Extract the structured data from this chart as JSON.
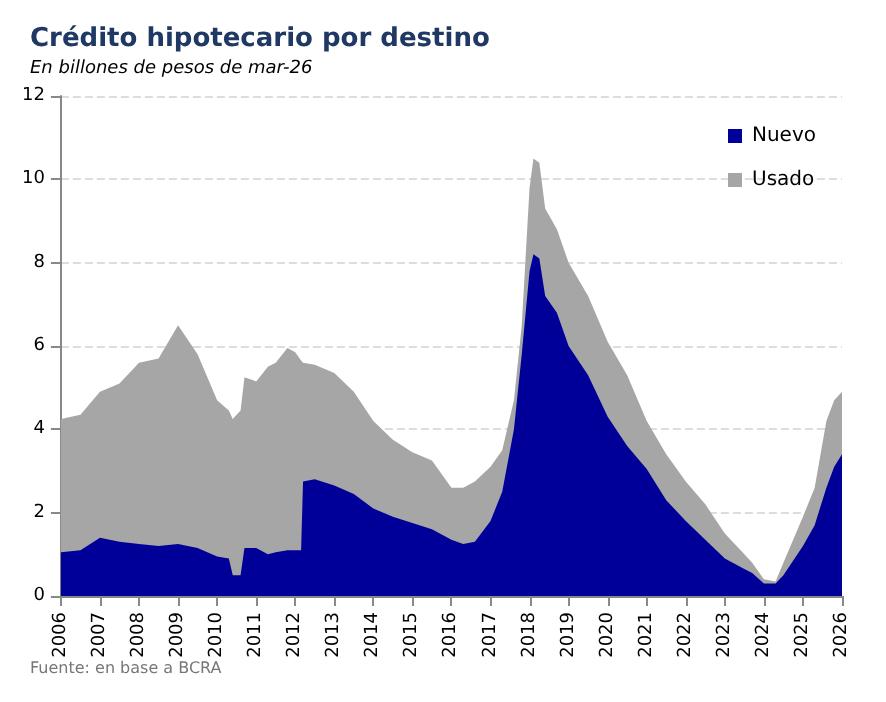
{
  "chart_data": {
    "type": "area",
    "title": "Crédito hipotecario por destino",
    "subtitle": "En billones de pesos de mar-26",
    "annotations": [
      "Fuente: en base a BCRA"
    ],
    "stacked": true,
    "x": [
      2006,
      2006.5,
      2007,
      2007.5,
      2008,
      2008.5,
      2009,
      2009.5,
      2010,
      2010.3,
      2010.4,
      2010.6,
      2010.7,
      2011,
      2011.3,
      2011.5,
      2011.8,
      2012,
      2012.15,
      2012.2,
      2012.5,
      2013,
      2013.5,
      2014,
      2014.5,
      2015,
      2015.5,
      2016,
      2016.3,
      2016.6,
      2017,
      2017.3,
      2017.6,
      2017.8,
      2018,
      2018.1,
      2018.25,
      2018.4,
      2018.7,
      2019,
      2019.5,
      2020,
      2020.5,
      2021,
      2021.5,
      2022,
      2022.5,
      2023,
      2023.5,
      2023.7,
      2024,
      2024.3,
      2024.5,
      2025,
      2025.3,
      2025.6,
      2025.8,
      2026
    ],
    "series": [
      {
        "name": "Nuevo",
        "color": "#000099",
        "values": [
          1.05,
          1.1,
          1.4,
          1.3,
          1.25,
          1.2,
          1.25,
          1.15,
          0.95,
          0.9,
          0.5,
          0.5,
          1.15,
          1.15,
          1.0,
          1.05,
          1.1,
          1.1,
          1.1,
          2.75,
          2.8,
          2.65,
          2.45,
          2.1,
          1.9,
          1.75,
          1.6,
          1.35,
          1.25,
          1.3,
          1.8,
          2.5,
          4.0,
          5.8,
          7.8,
          8.2,
          8.1,
          7.2,
          6.8,
          6.0,
          5.3,
          4.3,
          3.6,
          3.05,
          2.3,
          1.8,
          1.35,
          0.9,
          0.65,
          0.55,
          0.3,
          0.3,
          0.5,
          1.2,
          1.7,
          2.6,
          3.1,
          3.4
        ]
      },
      {
        "name": "Usado",
        "color": "#a6a6a6",
        "values": [
          3.2,
          3.25,
          3.5,
          3.8,
          4.35,
          4.5,
          5.25,
          4.65,
          3.75,
          3.55,
          3.75,
          3.95,
          4.1,
          4.0,
          4.5,
          4.55,
          4.85,
          4.75,
          4.55,
          2.85,
          2.75,
          2.7,
          2.45,
          2.1,
          1.85,
          1.7,
          1.65,
          1.25,
          1.35,
          1.45,
          1.3,
          1.0,
          0.7,
          0.7,
          2.0,
          2.3,
          2.3,
          2.1,
          2.0,
          2.0,
          1.9,
          1.8,
          1.7,
          1.15,
          1.1,
          0.95,
          0.85,
          0.6,
          0.35,
          0.25,
          0.1,
          0.05,
          0.3,
          0.7,
          0.9,
          1.6,
          1.6,
          1.5
        ]
      }
    ],
    "xlim": [
      2006,
      2026
    ],
    "xticks": [
      2006,
      2007,
      2008,
      2009,
      2010,
      2011,
      2012,
      2013,
      2014,
      2015,
      2016,
      2017,
      2018,
      2019,
      2020,
      2021,
      2022,
      2023,
      2024,
      2025,
      2026
    ],
    "ylim": [
      0,
      12
    ],
    "yticks": [
      0,
      2,
      4,
      6,
      8,
      10,
      12
    ],
    "grid": "y",
    "legend": "top right"
  }
}
